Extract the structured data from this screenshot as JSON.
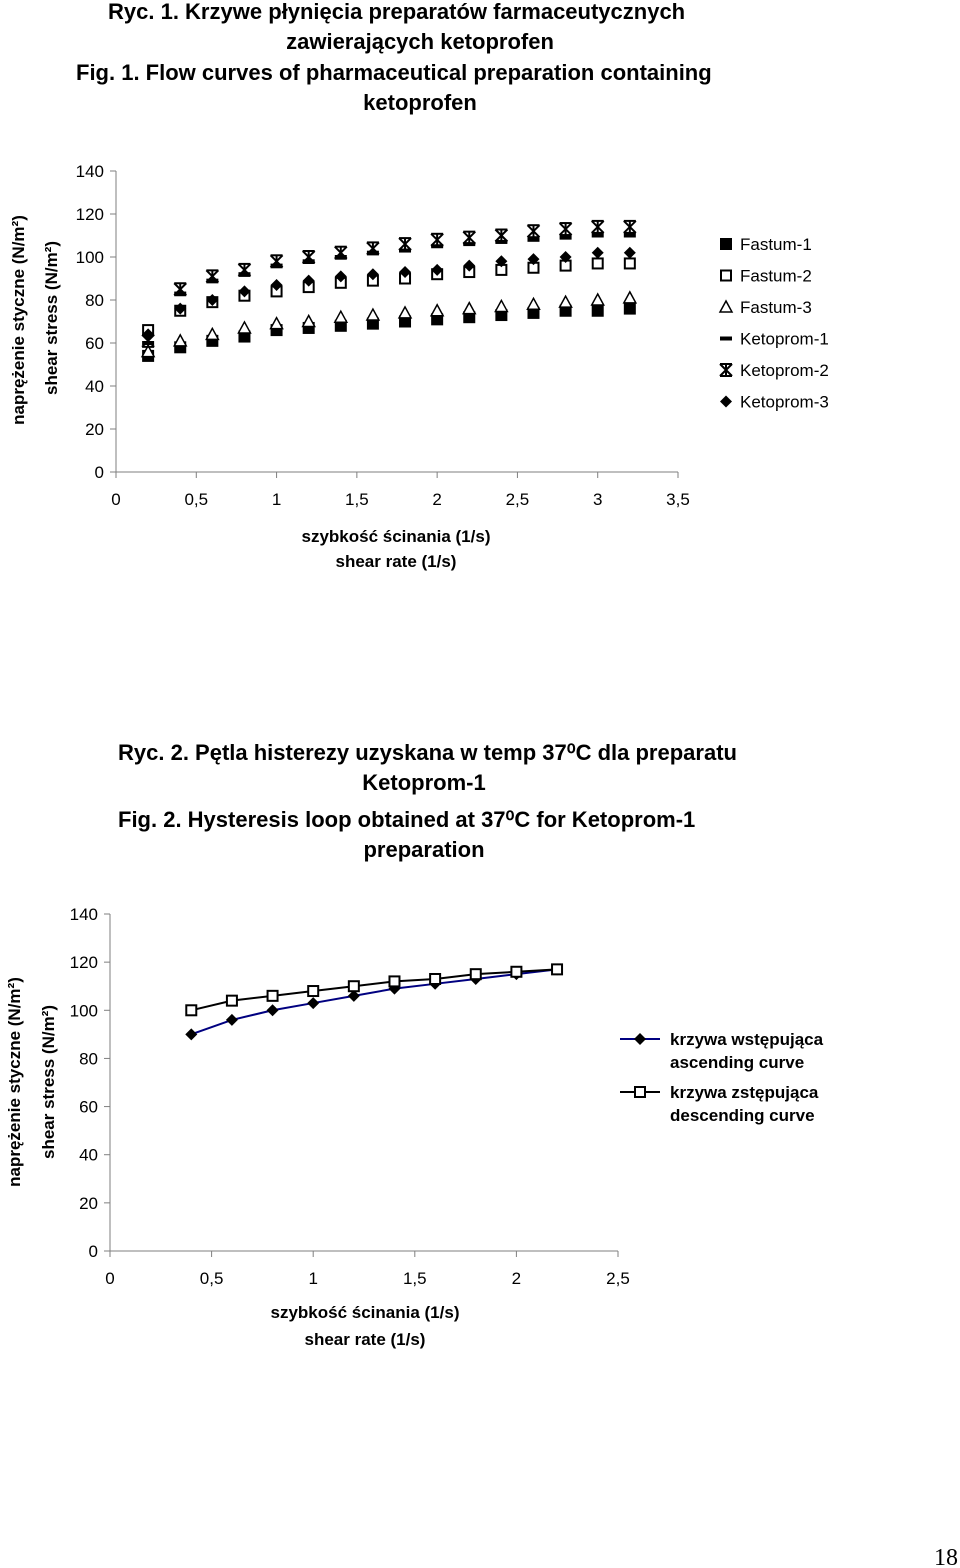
{
  "page_number": "18",
  "fig1": {
    "title_lines": [
      "Ryc. 1.  Krzywe płynięcia preparatów farmaceutycznych",
      "zawierających ketoprofen",
      "Fig. 1.  Flow curves of pharmaceutical preparation containing",
      "ketoprofen"
    ],
    "ylabel_pl": "naprężenie styczne (N/m²)",
    "ylabel_en": "shear stress (N/m²)",
    "xlabel_pl": "szybkość ścinania (1/s)",
    "xlabel_en": "shear rate (1/s)"
  },
  "fig2": {
    "title_lines": [
      "Ryc. 2. Pętla histerezy uzyskana w temp 37⁰C dla preparatu",
      "Ketoprom-1",
      "Fig. 2. Hysteresis loop obtained at 37⁰C for Ketoprom-1",
      "preparation"
    ],
    "ylabel_pl": "naprężenie styczne (N/m²)",
    "ylabel_en": "shear stress (N/m²)",
    "xlabel_pl": "szybkość ścinania (1/s)",
    "xlabel_en": "shear rate (1/s)"
  },
  "chart_data": [
    {
      "type": "scatter",
      "xlim": [
        0,
        3.5
      ],
      "ylim": [
        0,
        140
      ],
      "x_ticks": [
        "0",
        "0,5",
        "1",
        "1,5",
        "2",
        "2,5",
        "3",
        "3,5"
      ],
      "y_ticks": [
        "0",
        "20",
        "40",
        "60",
        "80",
        "100",
        "120",
        "140"
      ],
      "legend_position": "right",
      "grid": false,
      "x": [
        0.2,
        0.4,
        0.6,
        0.8,
        1.0,
        1.2,
        1.4,
        1.6,
        1.8,
        2.0,
        2.2,
        2.4,
        2.6,
        2.8,
        3.0,
        3.2
      ],
      "series": [
        {
          "name": "Fastum-1",
          "marker": "filled-square",
          "values": [
            54,
            58,
            61,
            63,
            66,
            67,
            68,
            69,
            70,
            71,
            72,
            73,
            74,
            75,
            75,
            76
          ]
        },
        {
          "name": "Fastum-2",
          "marker": "open-square",
          "values": [
            66,
            75,
            79,
            82,
            84,
            86,
            88,
            89,
            90,
            92,
            93,
            94,
            95,
            96,
            97,
            97
          ]
        },
        {
          "name": "Fastum-3",
          "marker": "open-triangle",
          "values": [
            56,
            61,
            64,
            67,
            69,
            70,
            72,
            73,
            74,
            75,
            76,
            77,
            78,
            79,
            80,
            81
          ]
        },
        {
          "name": "Ketoprom-1",
          "marker": "dash",
          "values": [
            60,
            83,
            89,
            92,
            96,
            98,
            100,
            102,
            103,
            105,
            106,
            107,
            108,
            109,
            110,
            110
          ]
        },
        {
          "name": "Ketoprom-2",
          "marker": "asterisk",
          "values": [
            61,
            85,
            91,
            94,
            98,
            100,
            102,
            104,
            106,
            108,
            109,
            110,
            112,
            113,
            114,
            114
          ]
        },
        {
          "name": "Ketoprom-3",
          "marker": "filled-diamond",
          "values": [
            64,
            76,
            80,
            84,
            87,
            89,
            91,
            92,
            93,
            94,
            96,
            98,
            99,
            100,
            102,
            102
          ]
        }
      ]
    },
    {
      "type": "line",
      "xlim": [
        0,
        2.5
      ],
      "ylim": [
        0,
        140
      ],
      "x_ticks": [
        "0",
        "0,5",
        "1",
        "1,5",
        "2",
        "2,5"
      ],
      "y_ticks": [
        "0",
        "20",
        "40",
        "60",
        "80",
        "100",
        "120",
        "140"
      ],
      "legend_position": "right",
      "grid": false,
      "x": [
        0.4,
        0.6,
        0.8,
        1.0,
        1.2,
        1.4,
        1.6,
        1.8,
        2.0,
        2.2
      ],
      "series": [
        {
          "name": "krzywa wstępująca\nascending curve",
          "name_lines": [
            "krzywa wstępująca",
            "ascending curve"
          ],
          "marker": "filled-diamond",
          "color": "#000080",
          "values": [
            90,
            96,
            100,
            103,
            106,
            109,
            111,
            113,
            115,
            117
          ]
        },
        {
          "name": "krzywa zstępująca\ndescending curve",
          "name_lines": [
            "krzywa zstępująca",
            "descending curve"
          ],
          "marker": "open-square",
          "color": "#000000",
          "values": [
            100,
            104,
            106,
            108,
            110,
            112,
            113,
            115,
            116,
            117
          ]
        }
      ]
    }
  ]
}
